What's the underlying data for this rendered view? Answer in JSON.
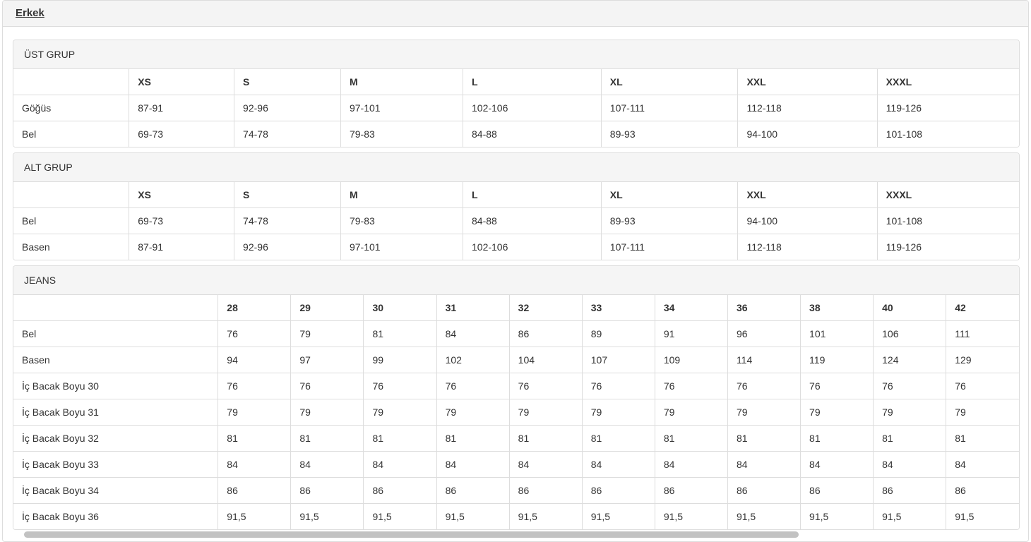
{
  "header": {
    "title": "Erkek"
  },
  "panels": [
    {
      "id": "ust-grup",
      "heading": "ÜST GRUP",
      "columns": [
        "",
        "XS",
        "S",
        "M",
        "L",
        "XL",
        "XXL",
        "XXXL"
      ],
      "rows": [
        {
          "label": "Göğüs",
          "values": [
            "87-91",
            "92-96",
            "97-101",
            "102-106",
            "107-111",
            "112-118",
            "119-126"
          ]
        },
        {
          "label": "Bel",
          "values": [
            "69-73",
            "74-78",
            "79-83",
            "84-88",
            "89-93",
            "94-100",
            "101-108"
          ]
        }
      ]
    },
    {
      "id": "alt-grup",
      "heading": "ALT GRUP",
      "columns": [
        "",
        "XS",
        "S",
        "M",
        "L",
        "XL",
        "XXL",
        "XXXL"
      ],
      "rows": [
        {
          "label": "Bel",
          "values": [
            "69-73",
            "74-78",
            "79-83",
            "84-88",
            "89-93",
            "94-100",
            "101-108"
          ]
        },
        {
          "label": "Basen",
          "values": [
            "87-91",
            "92-96",
            "97-101",
            "102-106",
            "107-111",
            "112-118",
            "119-126"
          ]
        }
      ]
    },
    {
      "id": "jeans",
      "heading": "JEANS",
      "columns": [
        "",
        "28",
        "29",
        "30",
        "31",
        "32",
        "33",
        "34",
        "36",
        "38",
        "40",
        "42"
      ],
      "rows": [
        {
          "label": "Bel",
          "values": [
            "76",
            "79",
            "81",
            "84",
            "86",
            "89",
            "91",
            "96",
            "101",
            "106",
            "111"
          ]
        },
        {
          "label": "Basen",
          "values": [
            "94",
            "97",
            "99",
            "102",
            "104",
            "107",
            "109",
            "114",
            "119",
            "124",
            "129"
          ]
        },
        {
          "label": "İç Bacak Boyu 30",
          "values": [
            "76",
            "76",
            "76",
            "76",
            "76",
            "76",
            "76",
            "76",
            "76",
            "76",
            "76"
          ]
        },
        {
          "label": "İç Bacak Boyu 31",
          "values": [
            "79",
            "79",
            "79",
            "79",
            "79",
            "79",
            "79",
            "79",
            "79",
            "79",
            "79"
          ]
        },
        {
          "label": "İç Bacak Boyu 32",
          "values": [
            "81",
            "81",
            "81",
            "81",
            "81",
            "81",
            "81",
            "81",
            "81",
            "81",
            "81"
          ]
        },
        {
          "label": "İç Bacak Boyu 33",
          "values": [
            "84",
            "84",
            "84",
            "84",
            "84",
            "84",
            "84",
            "84",
            "84",
            "84",
            "84"
          ]
        },
        {
          "label": "İç Bacak Boyu 34",
          "values": [
            "86",
            "86",
            "86",
            "86",
            "86",
            "86",
            "86",
            "86",
            "86",
            "86",
            "86"
          ]
        },
        {
          "label": "İç Bacak Boyu 36",
          "values": [
            "91,5",
            "91,5",
            "91,5",
            "91,5",
            "91,5",
            "91,5",
            "91,5",
            "91,5",
            "91,5",
            "91,5",
            "91,5"
          ]
        }
      ]
    }
  ],
  "colors": {
    "border": "#dddddd",
    "panel_heading_bg": "#f5f5f5",
    "header_band_bg": "#f4f4f4",
    "text": "#333333",
    "scrollbar_thumb": "#c2c2c2"
  },
  "scrollbar": {
    "orientation": "horizontal",
    "visible": true
  }
}
